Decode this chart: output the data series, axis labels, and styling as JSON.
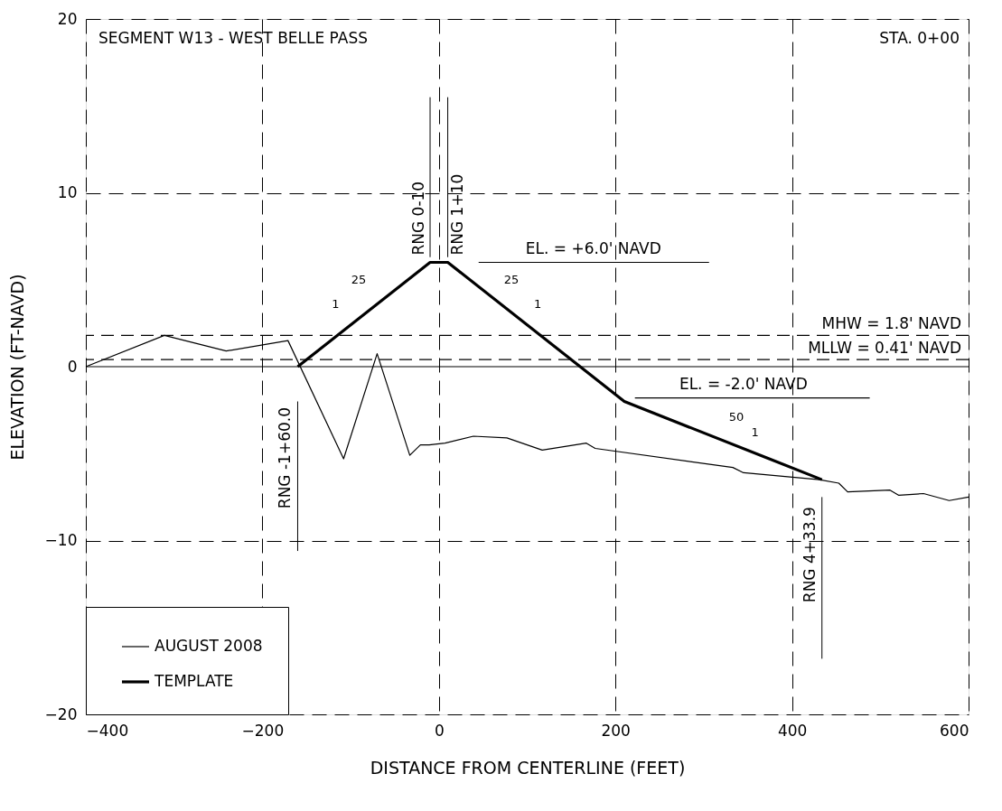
{
  "chart_data": {
    "type": "line",
    "title": "SEGMENT W13 - WEST BELLE PASS",
    "xlabel": "DISTANCE FROM CENTERLINE (FEET)",
    "ylabel": "ELEVATION (FT-NAVD)",
    "xlim": [
      -400,
      600
    ],
    "ylim": [
      -20,
      20
    ],
    "xticks": [
      -400,
      -200,
      0,
      200,
      400,
      600
    ],
    "yticks": [
      -20,
      -10,
      0,
      10,
      20
    ],
    "grid": true,
    "legend": "bottom left",
    "line_style": "solid",
    "marker": "none",
    "series": [
      {
        "name": "AUGUST 2008",
        "color": "#000000",
        "x": [
          -400,
          -311,
          -241,
          -171,
          -108,
          -70,
          -33,
          -21,
          -11,
          7,
          39,
          77,
          117,
          167,
          177,
          333,
          345,
          431,
          453,
          463,
          511,
          521,
          549,
          578,
          600
        ],
        "values": [
          0,
          1.8,
          0.9,
          1.5,
          -5.3,
          0.75,
          -5.1,
          -4.5,
          -4.5,
          -4.4,
          -4.0,
          -4.1,
          -4.8,
          -4.4,
          -4.7,
          -5.8,
          -6.1,
          -6.5,
          -6.7,
          -7.2,
          -7.1,
          -7.4,
          -7.3,
          -7.7,
          -7.5
        ]
      },
      {
        "name": "TEMPLATE",
        "color": "#000000",
        "x": [
          -160,
          -10,
          10,
          210,
          433.9
        ],
        "values": [
          0,
          6,
          6,
          -2,
          -6.5
        ]
      },
      {
        "type": "line",
        "color": "#000000",
        "x": [
          45,
          306
        ],
        "values": [
          6,
          6
        ]
      },
      {
        "type": "line",
        "color": "#000000",
        "x": [
          222,
          488
        ],
        "values": [
          -1.8,
          -1.8
        ]
      }
    ],
    "ref_lines": [
      {
        "axis": "y",
        "value": 1.8,
        "label": "MHW = 1.8' NAVD",
        "line_style": "dashed",
        "color": "#000000"
      },
      {
        "axis": "y",
        "value": 0.41,
        "label": "MLLW = 0.41' NAVD",
        "line_style": "dashed",
        "color": "#000000"
      },
      {
        "axis": "y",
        "value": 0,
        "label": null,
        "line_style": "solid",
        "color": "#000000"
      }
    ],
    "annotations": [
      "STA. 0+00",
      {
        "text": "RNG 0-10",
        "x": -10,
        "y": 6
      },
      {
        "text": "RNG 1+10",
        "x": 10,
        "y": 6
      },
      {
        "text": "RNG -1+60.0",
        "x": -160,
        "y": 0
      },
      {
        "text": "RNG 4+33.9",
        "x": 433.9,
        "y": -6.5
      },
      {
        "text": "EL. = +6.0' NAVD",
        "x": 175,
        "y": 6
      },
      {
        "text": "EL. = -2.0' NAVD",
        "x": 345,
        "y": -1.8
      },
      {
        "text": "25",
        "x": -91,
        "y": 2.76
      },
      {
        "text": "1",
        "x": -117,
        "y": 1.72
      },
      {
        "text": "25",
        "x": 82,
        "y": 3.12
      },
      {
        "text": "1",
        "x": 112,
        "y": 1.92
      },
      {
        "text": "50",
        "x": 337,
        "y": -4.55
      },
      {
        "text": "1",
        "x": 358,
        "y": -4.97
      }
    ]
  }
}
